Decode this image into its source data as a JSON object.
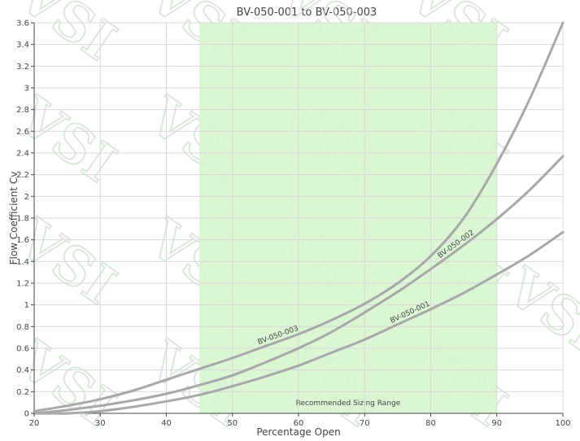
{
  "chart_data": {
    "type": "line",
    "title": "BV-050-001 to BV-050-003",
    "xlabel": "Percentage Open",
    "ylabel": "Flow Coefficient Cv",
    "xlim": [
      20,
      100
    ],
    "ylim": [
      0,
      3.6
    ],
    "x_ticks": [
      20,
      30,
      40,
      50,
      60,
      70,
      80,
      90,
      100
    ],
    "y_ticks": [
      0,
      0.2,
      0.4,
      0.6,
      0.8,
      1,
      1.2,
      1.4,
      1.6,
      1.8,
      2,
      2.2,
      2.4,
      2.6,
      2.8,
      3,
      3.2,
      3.4,
      3.6
    ],
    "grid": true,
    "legend": "none",
    "x": [
      20,
      25,
      30,
      35,
      40,
      45,
      50,
      55,
      60,
      65,
      70,
      75,
      80,
      85,
      90,
      95,
      100
    ],
    "series": [
      {
        "name": "BV-050-001",
        "color": "#a8a8a8",
        "values": [
          0.0,
          0.0,
          0.02,
          0.06,
          0.11,
          0.17,
          0.25,
          0.34,
          0.44,
          0.56,
          0.68,
          0.82,
          0.96,
          1.11,
          1.28,
          1.46,
          1.67
        ]
      },
      {
        "name": "BV-050-002",
        "color": "#a8a8a8",
        "values": [
          0.0,
          0.03,
          0.07,
          0.12,
          0.18,
          0.26,
          0.35,
          0.47,
          0.6,
          0.75,
          0.93,
          1.12,
          1.33,
          1.55,
          1.79,
          2.06,
          2.37
        ]
      },
      {
        "name": "BV-050-003",
        "color": "#a8a8a8",
        "values": [
          0.02,
          0.07,
          0.13,
          0.21,
          0.31,
          0.41,
          0.51,
          0.62,
          0.73,
          0.86,
          1.01,
          1.2,
          1.45,
          1.8,
          2.3,
          2.9,
          3.6
        ]
      }
    ],
    "band": {
      "label": "Recommended Sizing Range",
      "x_start": 45,
      "x_end": 90,
      "color": "#d5f5cd"
    },
    "watermark": "VSI",
    "watermark_color": "#c6dcc6"
  }
}
